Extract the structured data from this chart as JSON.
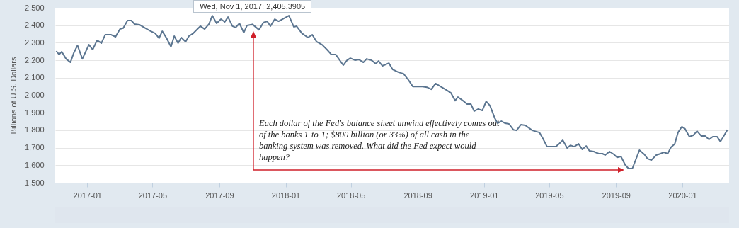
{
  "chart_data": {
    "type": "line",
    "ylabel": "Billions of U.S. Dollars",
    "x": [
      "2016-11-05",
      "2016-11-10",
      "2016-11-15",
      "2016-11-23",
      "2016-12-01",
      "2016-12-07",
      "2016-12-14",
      "2016-12-23",
      "2017-01-04",
      "2017-01-11",
      "2017-01-19",
      "2017-01-27",
      "2017-02-03",
      "2017-02-14",
      "2017-02-22",
      "2017-03-02",
      "2017-03-08",
      "2017-03-16",
      "2017-03-23",
      "2017-03-29",
      "2017-04-07",
      "2017-04-18",
      "2017-04-28",
      "2017-05-06",
      "2017-05-13",
      "2017-05-19",
      "2017-05-27",
      "2017-06-04",
      "2017-06-10",
      "2017-06-17",
      "2017-06-23",
      "2017-07-01",
      "2017-07-07",
      "2017-07-15",
      "2017-07-28",
      "2017-08-05",
      "2017-08-13",
      "2017-08-19",
      "2017-08-27",
      "2017-09-04",
      "2017-09-11",
      "2017-09-17",
      "2017-09-25",
      "2017-10-01",
      "2017-10-08",
      "2017-10-16",
      "2017-10-22",
      "2017-11-01",
      "2017-11-13",
      "2017-11-21",
      "2017-11-28",
      "2017-12-04",
      "2017-12-12",
      "2017-12-19",
      "2018-01-07",
      "2018-01-16",
      "2018-01-21",
      "2018-01-31",
      "2018-02-11",
      "2018-02-19",
      "2018-02-27",
      "2018-03-09",
      "2018-03-18",
      "2018-03-26",
      "2018-04-03",
      "2018-04-17",
      "2018-04-24",
      "2018-04-30",
      "2018-05-09",
      "2018-05-16",
      "2018-05-24",
      "2018-05-30",
      "2018-06-08",
      "2018-06-16",
      "2018-06-21",
      "2018-06-28",
      "2018-07-10",
      "2018-07-17",
      "2018-07-28",
      "2018-08-06",
      "2018-08-15",
      "2018-08-23",
      "2018-09-10",
      "2018-09-18",
      "2018-09-26",
      "2018-10-04",
      "2018-10-13",
      "2018-10-26",
      "2018-11-01",
      "2018-11-09",
      "2018-11-14",
      "2018-11-25",
      "2018-12-01",
      "2018-12-08",
      "2018-12-14",
      "2018-12-21",
      "2018-12-29",
      "2019-01-05",
      "2019-01-12",
      "2019-01-21",
      "2019-01-26",
      "2019-02-02",
      "2019-02-09",
      "2019-02-16",
      "2019-02-24",
      "2019-03-02",
      "2019-03-10",
      "2019-03-18",
      "2019-03-31",
      "2019-04-13",
      "2019-04-19",
      "2019-04-27",
      "2019-05-13",
      "2019-05-19",
      "2019-05-26",
      "2019-06-03",
      "2019-06-09",
      "2019-06-16",
      "2019-06-24",
      "2019-07-01",
      "2019-07-08",
      "2019-07-14",
      "2019-07-22",
      "2019-07-31",
      "2019-08-07",
      "2019-08-12",
      "2019-08-20",
      "2019-08-28",
      "2019-09-03",
      "2019-09-10",
      "2019-09-18",
      "2019-09-24",
      "2019-10-01",
      "2019-10-14",
      "2019-10-23",
      "2019-10-29",
      "2019-11-05",
      "2019-11-14",
      "2019-11-22",
      "2019-11-28",
      "2019-12-05",
      "2019-12-11",
      "2019-12-18",
      "2019-12-24",
      "2019-12-31",
      "2020-01-06",
      "2020-01-14",
      "2020-01-21",
      "2020-01-28",
      "2020-02-05",
      "2020-02-12",
      "2020-02-19",
      "2020-02-26",
      "2020-03-05",
      "2020-03-11",
      "2020-03-24"
    ],
    "series": [
      {
        "color": "#5b7590",
        "values": [
          2253,
          2233,
          2249,
          2208,
          2188,
          2241,
          2285,
          2208,
          2289,
          2261,
          2314,
          2298,
          2346,
          2346,
          2334,
          2378,
          2383,
          2427,
          2427,
          2407,
          2403,
          2383,
          2366,
          2354,
          2326,
          2366,
          2326,
          2277,
          2338,
          2298,
          2330,
          2306,
          2338,
          2354,
          2395,
          2378,
          2407,
          2455,
          2411,
          2435,
          2419,
          2447,
          2395,
          2387,
          2411,
          2358,
          2399,
          2405.3905,
          2374,
          2415,
          2423,
          2395,
          2435,
          2423,
          2455,
          2391,
          2395,
          2354,
          2330,
          2346,
          2306,
          2289,
          2261,
          2233,
          2233,
          2172,
          2200,
          2212,
          2200,
          2204,
          2188,
          2208,
          2200,
          2180,
          2196,
          2168,
          2184,
          2147,
          2131,
          2123,
          2087,
          2050,
          2050,
          2046,
          2034,
          2067,
          2050,
          2026,
          2014,
          1969,
          1990,
          1965,
          1949,
          1949,
          1909,
          1921,
          1913,
          1965,
          1941,
          1868,
          1840,
          1852,
          1840,
          1836,
          1803,
          1799,
          1832,
          1828,
          1799,
          1787,
          1755,
          1706,
          1706,
          1722,
          1743,
          1698,
          1714,
          1706,
          1722,
          1690,
          1710,
          1682,
          1678,
          1666,
          1666,
          1658,
          1678,
          1662,
          1645,
          1650,
          1601,
          1581,
          1581,
          1686,
          1662,
          1637,
          1629,
          1658,
          1666,
          1674,
          1666,
          1702,
          1722,
          1787,
          1820,
          1808,
          1763,
          1771,
          1795,
          1767,
          1767,
          1747,
          1763,
          1763,
          1735,
          1803
        ]
      }
    ],
    "xlim": [
      "2016-11-03",
      "2020-03-27"
    ],
    "xticks": [
      {
        "value": "2017-01",
        "label": "2017-01"
      },
      {
        "value": "2017-05",
        "label": "2017-05"
      },
      {
        "value": "2017-09",
        "label": "2017-09"
      },
      {
        "value": "2018-01",
        "label": "2018-01"
      },
      {
        "value": "2018-05",
        "label": "2018-05"
      },
      {
        "value": "2018-09",
        "label": "2018-09"
      },
      {
        "value": "2019-01",
        "label": "2019-01"
      },
      {
        "value": "2019-05",
        "label": "2019-05"
      },
      {
        "value": "2019-09",
        "label": "2019-09"
      },
      {
        "value": "2020-01",
        "label": "2020-01"
      }
    ],
    "ylim": [
      1500,
      2500
    ],
    "yticks": [
      {
        "value": 1500,
        "label": "1,500"
      },
      {
        "value": 1600,
        "label": "1,600"
      },
      {
        "value": 1700,
        "label": "1,700"
      },
      {
        "value": 1800,
        "label": "1,800"
      },
      {
        "value": 1900,
        "label": "1,900"
      },
      {
        "value": 2000,
        "label": "2,000"
      },
      {
        "value": 2100,
        "label": "2,100"
      },
      {
        "value": 2200,
        "label": "2,200"
      },
      {
        "value": 2300,
        "label": "2,300"
      },
      {
        "value": 2400,
        "label": "2,400"
      },
      {
        "value": 2500,
        "label": "2,500"
      }
    ],
    "grid": "y",
    "annotations": [
      {
        "text": "Wed, Nov 1, 2017: 2,405.3905",
        "x": "2017-11-01",
        "y": 2405.3905
      },
      "Each dollar of the Fed's balance sheet unwind effectively comes out of the banks 1-to-1; $800 billion (or 33%) of all cash in the banking system was removed. What did the Fed expect would happen?"
    ]
  }
}
